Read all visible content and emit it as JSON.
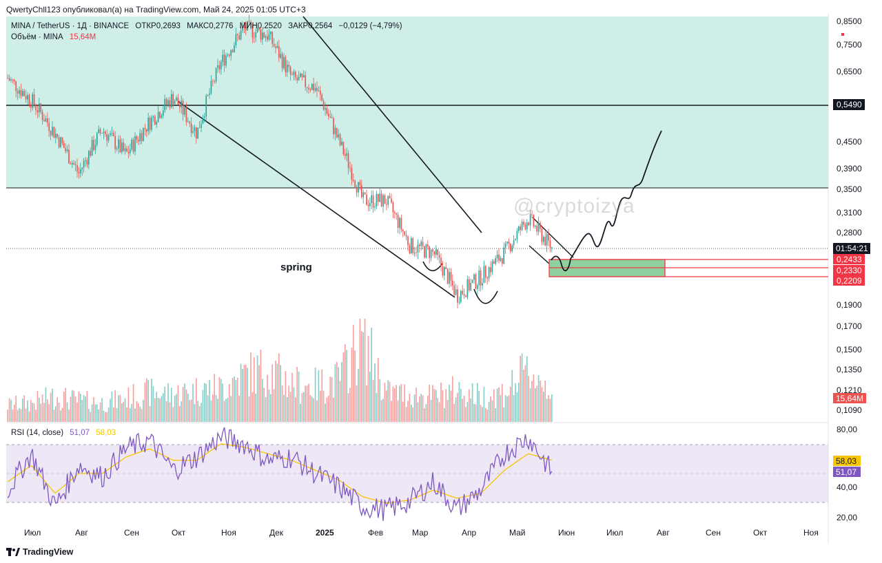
{
  "header": {
    "publish_line": "QwertyChll123 опубликовал(а) на TradingView.com, Май 24, 2025 01:05 UTC+3"
  },
  "legend": {
    "symbol": "MINA / TetherUS · 1Д · BINANCE",
    "open": "ОТКР0,2693",
    "high": "МАКС0,2776",
    "low": "МИН0,2520",
    "close": "ЗАКР0,2564",
    "change": "−0,0129 (−4,79%)",
    "volume_label": "Объём · MINA",
    "volume_value": "15,64M"
  },
  "rsi_legend": {
    "label": "RSI (14, close)",
    "rsi_value": "51,07",
    "ma_value": "58,03"
  },
  "annotations": {
    "spring": "spring",
    "watermark": "@cryptoizya"
  },
  "price_axis": {
    "ticks": [
      "0,8500",
      "0,7500",
      "0,6500",
      "0,4500",
      "0,3900",
      "0,3500",
      "0,3100",
      "0,2800",
      "0,1900",
      "0,1700",
      "0,1500",
      "0,1350",
      "0,1210",
      "0,1090"
    ],
    "tags": {
      "level_549": "0,5490",
      "timer": "01:54:21",
      "r1": "0,2433",
      "r2": "0,2330",
      "r3": "0,2209",
      "vol": "15,64M"
    }
  },
  "rsi_axis": {
    "ticks": [
      "80,00",
      "40,00",
      "20,00"
    ],
    "tags": {
      "ma": "58,03",
      "rsi": "51,07"
    }
  },
  "time_axis": [
    "Июл",
    "Авг",
    "Сен",
    "Окт",
    "Ноя",
    "Дек",
    "2025",
    "Фев",
    "Мар",
    "Апр",
    "Май",
    "Июн",
    "Июл",
    "Авг",
    "Сен",
    "Окт",
    "Ноя"
  ],
  "footer": {
    "brand": "TradingView"
  },
  "colors": {
    "up": "#26a69a",
    "down": "#ef5350",
    "zone": "#cfeee7",
    "green_box": "#8fd19e",
    "red_box": "#f23645",
    "rsi_line": "#7e57c2",
    "rsi_ma": "#f7c600",
    "rsi_band": "#ede7f6"
  },
  "chart_data": {
    "type": "candlestick",
    "symbol": "MINA / TetherUS",
    "interval": "1Д",
    "log_scale": true,
    "series": [
      {
        "name": "price",
        "x": [
          "2024-06-24",
          "2024-07-15",
          "2024-08-03",
          "2024-08-20",
          "2024-09-06",
          "2024-09-25",
          "2024-10-10",
          "2024-10-25",
          "2024-11-05",
          "2024-11-20",
          "2024-12-05",
          "2024-12-18",
          "2025-01-01",
          "2025-01-15",
          "2025-01-27",
          "2025-02-03",
          "2025-02-20",
          "2025-03-10",
          "2025-03-25",
          "2025-04-07",
          "2025-04-20",
          "2025-05-01",
          "2025-05-13",
          "2025-05-23"
        ],
        "values": [
          0.63,
          0.56,
          0.47,
          0.38,
          0.48,
          0.42,
          0.5,
          0.57,
          0.47,
          0.68,
          0.82,
          0.79,
          0.63,
          0.6,
          0.45,
          0.33,
          0.33,
          0.26,
          0.25,
          0.2,
          0.22,
          0.25,
          0.3,
          0.2564
        ]
      },
      {
        "name": "Объём · MINA",
        "values_m": [
          8,
          9,
          12,
          10,
          9,
          11,
          14,
          13,
          15,
          16,
          22,
          25,
          18,
          17,
          20,
          40,
          14,
          13,
          12,
          15,
          12,
          14,
          24,
          15.64
        ]
      },
      {
        "name": "RSI (14, close)",
        "values": [
          40,
          62,
          30,
          55,
          48,
          65,
          70,
          52,
          60,
          72,
          68,
          58,
          60,
          50,
          42,
          30,
          28,
          33,
          45,
          28,
          40,
          62,
          72,
          51.07
        ]
      },
      {
        "name": "RSI MA",
        "values": [
          45,
          55,
          38,
          50,
          50,
          60,
          65,
          58,
          58,
          68,
          66,
          62,
          58,
          52,
          46,
          36,
          32,
          34,
          40,
          35,
          38,
          52,
          62,
          58.03
        ]
      }
    ],
    "horizontal_levels": [
      0.549,
      0.35
    ],
    "zones": [
      {
        "from": 0.2209,
        "to": 0.2433,
        "mid": 0.233
      }
    ],
    "ylim": [
      0.105,
      0.88
    ],
    "rsi_ylim": [
      15,
      85
    ],
    "rsi_bands": [
      30,
      70
    ]
  }
}
